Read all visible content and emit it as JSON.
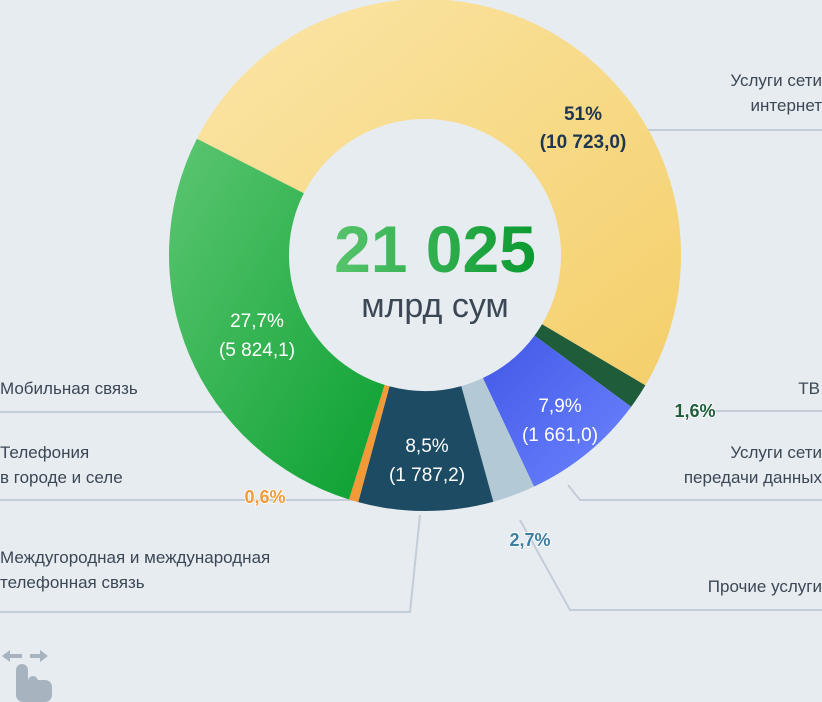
{
  "chart_data": {
    "type": "pie",
    "title": "",
    "center": {
      "value": "21 025",
      "unit": "млрд сум"
    },
    "slices": [
      {
        "key": "internet",
        "label": "Услуги сети интернет",
        "percent": 51,
        "percent_label": "51%",
        "value_label": "(10 723,0)",
        "color": "#f6d77d",
        "color2": "#fbe6a8",
        "text_color": "#1f3650"
      },
      {
        "key": "tv",
        "label": "ТВ",
        "percent": 1.6,
        "percent_label": "1,6%",
        "value_label": "",
        "color": "#1f5c3a",
        "color2": "#1f5c3a",
        "text_color": "#1f5c3a"
      },
      {
        "key": "data",
        "label": "Услуги сети передачи данных",
        "percent": 7.9,
        "percent_label": "7,9%",
        "value_label": "(1 661,0)",
        "color": "#4e66ee",
        "color2": "#6b82ff",
        "text_color": "#ffffff"
      },
      {
        "key": "other",
        "label": "Прочие услуги",
        "percent": 2.7,
        "percent_label": "2,7%",
        "value_label": "",
        "color": "#b3c9d6",
        "color2": "#b3c9d6",
        "text_color": "#3d6d8a"
      },
      {
        "key": "longdist",
        "label": "Междугородная и международная телефонная связь",
        "percent": 8.5,
        "percent_label": "8,5%",
        "value_label": "(1 787,2)",
        "color": "#1c4b63",
        "color2": "#1c4b63",
        "text_color": "#ffffff"
      },
      {
        "key": "fixed",
        "label": "Телефония в городе и селе",
        "percent": 0.6,
        "percent_label": "0,6%",
        "value_label": "",
        "color": "#f29a38",
        "color2": "#f29a38",
        "text_color": "#f29a38"
      },
      {
        "key": "mobile",
        "label": "Мобильная связь",
        "percent": 27.7,
        "percent_label": "27,7%",
        "value_label": "(5 824,1)",
        "color": "#10a53a",
        "color2": "#58c46c",
        "text_color": "#ffffff"
      }
    ]
  },
  "labels": {
    "internet": [
      "Услуги сети",
      "интернет"
    ],
    "tv": [
      "ТВ"
    ],
    "data": [
      "Услуги сети",
      "передачи данных"
    ],
    "other": [
      "Прочие услуги"
    ],
    "longdist": [
      "Междугородная и международная",
      "телефонная связь"
    ],
    "fixed": [
      "Телефония",
      "в городе и селе"
    ],
    "mobile": [
      "Мобильная связь"
    ]
  },
  "icon": {
    "name": "swipe-hand-icon",
    "color": "#a7b3be"
  }
}
